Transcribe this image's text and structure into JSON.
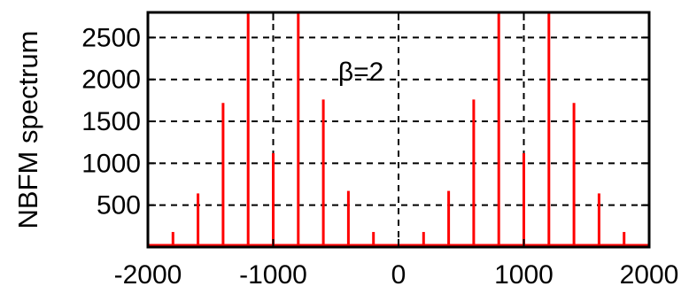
{
  "chart_data": {
    "type": "stem",
    "ylabel": "NBFM spectrum",
    "annotation": "β=2",
    "xlim": [
      -2000,
      2000
    ],
    "ylim": [
      0,
      2800
    ],
    "xticks": [
      -2000,
      -1000,
      0,
      1000,
      2000
    ],
    "yticks": [
      500,
      1000,
      1500,
      2000,
      2500
    ],
    "grid": true,
    "grid_x": [
      -1000,
      0,
      1000
    ],
    "line_color": "#ff0000",
    "x": [
      -1800,
      -1600,
      -1400,
      -1200,
      -1000,
      -800,
      -600,
      -400,
      -200,
      0,
      200,
      400,
      600,
      800,
      1000,
      1200,
      1400,
      1600,
      1800
    ],
    "values": [
      180,
      640,
      1720,
      2800,
      1120,
      2800,
      1760,
      670,
      180,
      0,
      180,
      670,
      1760,
      2800,
      1120,
      2800,
      1720,
      640,
      180
    ]
  }
}
